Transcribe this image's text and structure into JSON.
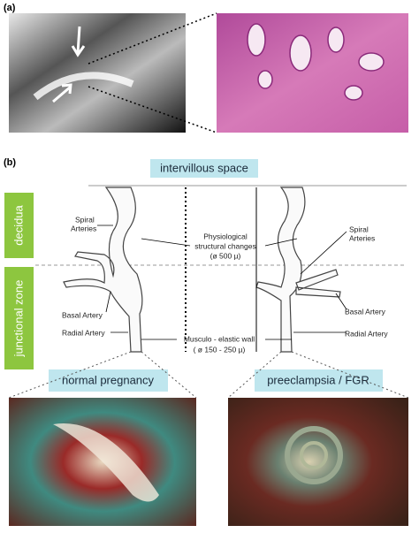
{
  "panel_a": {
    "label": "(a)"
  },
  "panel_b": {
    "label": "(b)",
    "top_label": "intervillous space",
    "zones": [
      "decidua",
      "junctional zone"
    ],
    "left_spiral": [
      "Spiral",
      "Arteries"
    ],
    "physiological": [
      "Physiological",
      "structural changes",
      "(ø 500 µ)"
    ],
    "left_basal": "Basal Artery",
    "left_radial": "Radial Artery",
    "right_spiral": [
      "Spiral",
      "Arteries"
    ],
    "right_basal": "Basal Artery",
    "right_radial": "Radial Artery",
    "wall": [
      "Musculo - elastic wall",
      "( ø 150 - 250 µ)"
    ],
    "left_caption": "normal pregnancy",
    "right_caption": "preeclampsia / FGR"
  }
}
